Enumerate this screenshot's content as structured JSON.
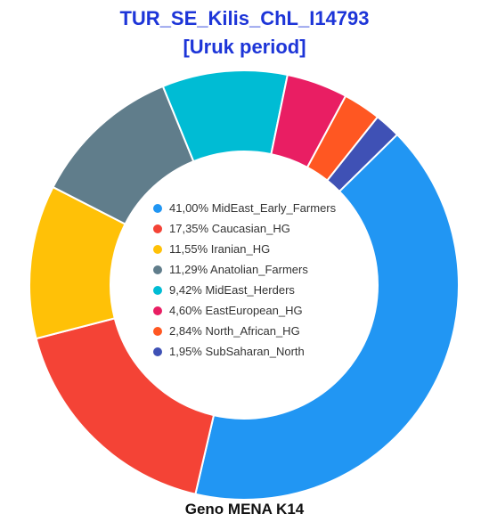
{
  "title_line1": "TUR_SE_Kilis_ChL_I14793",
  "title_line2": "[Uruk period]",
  "footer": "Geno MENA K14",
  "chart_data": {
    "type": "pie",
    "variant": "donut",
    "title": "TUR_SE_Kilis_ChL_I14793 [Uruk period]",
    "legend_placement": "center",
    "categories": [
      "MidEast_Early_Farmers",
      "Caucasian_HG",
      "Iranian_HG",
      "Anatolian_Farmers",
      "MidEast_Herders",
      "EastEuropean_HG",
      "North_African_HG",
      "SubSaharan_North"
    ],
    "values": [
      41.0,
      17.35,
      11.55,
      11.29,
      9.42,
      4.6,
      2.84,
      1.95
    ],
    "value_labels": [
      "41,00%",
      "17,35%",
      "11,55%",
      "11,29%",
      "9,42%",
      "4,60%",
      "2,84%",
      "1,95%"
    ],
    "colors": [
      "#2196f3",
      "#f44336",
      "#ffc107",
      "#607d8b",
      "#00bcd4",
      "#e91e63",
      "#ff5722",
      "#3f51b5"
    ]
  }
}
